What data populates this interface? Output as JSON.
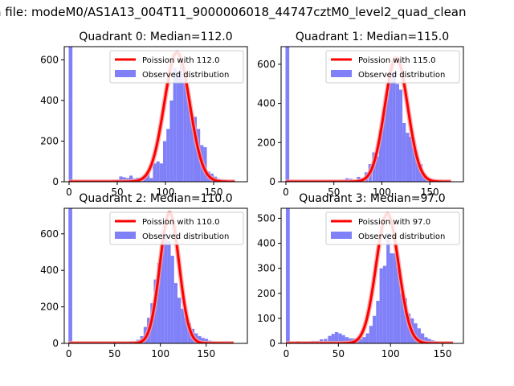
{
  "figure": {
    "suptitle": "n file: modeM0/AS1A13_004T11_9000006018_44747cztM0_level2_quad_clean"
  },
  "colors": {
    "hist": "#8080f8",
    "poisson": "#ff0000",
    "poisson_glow": "#f4a0a0"
  },
  "chart_data": [
    {
      "type": "bar",
      "title": "Quadrant 0: Median=112.0",
      "median": 112.0,
      "legend": {
        "placement": "upper-right",
        "entries": [
          "Poission with 112.0",
          "Observed distribution"
        ]
      },
      "xlim": [
        -5,
        185
      ],
      "ylim": [
        0,
        665
      ],
      "xticks": [
        0,
        50,
        100,
        150
      ],
      "xtick_labels": [
        "0",
        "50",
        "100",
        "150"
      ],
      "yticks": [
        0,
        200,
        400,
        600
      ],
      "ytick_labels": [
        "0",
        "200",
        "400",
        "600"
      ],
      "bin_width": 3.5,
      "bins": [
        [
          0,
          665
        ],
        [
          45,
          8
        ],
        [
          48.5,
          10
        ],
        [
          52,
          26
        ],
        [
          55.5,
          22
        ],
        [
          59,
          18
        ],
        [
          62.5,
          30
        ],
        [
          66,
          16
        ],
        [
          69.5,
          20
        ],
        [
          73,
          6
        ],
        [
          76.5,
          30
        ],
        [
          80,
          40
        ],
        [
          83.5,
          18
        ],
        [
          87,
          90
        ],
        [
          90.5,
          100
        ],
        [
          94,
          90
        ],
        [
          97.5,
          200
        ],
        [
          101,
          260
        ],
        [
          104.5,
          400
        ],
        [
          108,
          560
        ],
        [
          111.5,
          545
        ],
        [
          115,
          590
        ],
        [
          118.5,
          500
        ],
        [
          122,
          420
        ],
        [
          125.5,
          300
        ],
        [
          129,
          320
        ],
        [
          132.5,
          260
        ],
        [
          136,
          180
        ],
        [
          139.5,
          170
        ],
        [
          143,
          50
        ],
        [
          146.5,
          40
        ],
        [
          150,
          25
        ],
        [
          153.5,
          15
        ],
        [
          157,
          10
        ],
        [
          160.5,
          8
        ],
        [
          164,
          4
        ]
      ],
      "poisson_curve": {
        "lambda": 112.0,
        "scale": 637,
        "x_range": [
          0,
          172
        ],
        "sigma": 13.2
      }
    },
    {
      "type": "bar",
      "title": "Quadrant 1: Median=115.0",
      "median": 115.0,
      "legend": {
        "placement": "upper-right",
        "entries": [
          "Poission with 115.0",
          "Observed distribution"
        ]
      },
      "xlim": [
        -5,
        185
      ],
      "ylim": [
        0,
        690
      ],
      "xticks": [
        0,
        50,
        100,
        150
      ],
      "xtick_labels": [
        "0",
        "50",
        "100",
        "150"
      ],
      "yticks": [
        0,
        200,
        400,
        600
      ],
      "ytick_labels": [
        "0",
        "200",
        "400",
        "600"
      ],
      "bin_width": 3.5,
      "bins": [
        [
          0,
          690
        ],
        [
          52,
          5
        ],
        [
          58,
          8
        ],
        [
          62,
          18
        ],
        [
          66,
          15
        ],
        [
          70,
          8
        ],
        [
          74,
          25
        ],
        [
          78,
          14
        ],
        [
          82,
          48
        ],
        [
          86,
          90
        ],
        [
          90,
          150
        ],
        [
          93.5,
          130
        ],
        [
          97,
          270
        ],
        [
          100.5,
          360
        ],
        [
          104,
          450
        ],
        [
          107.5,
          600
        ],
        [
          111,
          560
        ],
        [
          114.5,
          500
        ],
        [
          118,
          470
        ],
        [
          121.5,
          300
        ],
        [
          125,
          250
        ],
        [
          128.5,
          230
        ],
        [
          132,
          170
        ],
        [
          135.5,
          120
        ],
        [
          139,
          90
        ],
        [
          142.5,
          30
        ],
        [
          146,
          20
        ],
        [
          149.5,
          10
        ],
        [
          153,
          8
        ],
        [
          156.5,
          5
        ]
      ],
      "poisson_curve": {
        "lambda": 115.0,
        "scale": 632,
        "x_range": [
          0,
          172
        ],
        "sigma": 12.0
      }
    },
    {
      "type": "bar",
      "title": "Quadrant 2: Median=110.0",
      "median": 110.0,
      "legend": {
        "placement": "upper-right",
        "entries": [
          "Poission with 110.0",
          "Observed distribution"
        ]
      },
      "xlim": [
        -5,
        195
      ],
      "ylim": [
        0,
        740
      ],
      "xticks": [
        0,
        50,
        100,
        150
      ],
      "xtick_labels": [
        "0",
        "50",
        "100",
        "150"
      ],
      "yticks": [
        0,
        200,
        400,
        600
      ],
      "ytick_labels": [
        "0",
        "200",
        "400",
        "600"
      ],
      "bin_width": 3.7,
      "bins": [
        [
          0,
          740
        ],
        [
          57,
          5
        ],
        [
          62,
          8
        ],
        [
          66,
          12
        ],
        [
          70,
          10
        ],
        [
          74,
          20
        ],
        [
          78,
          40
        ],
        [
          81.7,
          90
        ],
        [
          85.4,
          140
        ],
        [
          89.1,
          220
        ],
        [
          92.8,
          350
        ],
        [
          96.5,
          440
        ],
        [
          100.2,
          620
        ],
        [
          103.9,
          600
        ],
        [
          107.6,
          560
        ],
        [
          111.3,
          480
        ],
        [
          115,
          330
        ],
        [
          118.7,
          250
        ],
        [
          122.4,
          190
        ],
        [
          126.1,
          140
        ],
        [
          129.8,
          110
        ],
        [
          133.5,
          80
        ],
        [
          137.2,
          55
        ],
        [
          140.9,
          40
        ],
        [
          144.6,
          30
        ],
        [
          148.3,
          25
        ],
        [
          152,
          15
        ],
        [
          155.7,
          10
        ],
        [
          159.4,
          8
        ],
        [
          163.1,
          5
        ]
      ],
      "poisson_curve": {
        "lambda": 110.0,
        "scale": 715,
        "x_range": [
          0,
          180
        ],
        "sigma": 10.5
      }
    },
    {
      "type": "bar",
      "title": "Quadrant 3: Median=97.0",
      "median": 97.0,
      "legend": {
        "placement": "upper-right",
        "entries": [
          "Poission with 97.0",
          "Observed distribution"
        ]
      },
      "xlim": [
        -5,
        170
      ],
      "ylim": [
        0,
        540
      ],
      "xticks": [
        0,
        50,
        100,
        150
      ],
      "xtick_labels": [
        "0",
        "50",
        "100",
        "150"
      ],
      "yticks": [
        0,
        100,
        200,
        300,
        400,
        500
      ],
      "ytick_labels": [
        "0",
        "100",
        "200",
        "300",
        "400",
        "500"
      ],
      "bin_width": 3.3,
      "bins": [
        [
          0,
          540
        ],
        [
          10,
          8
        ],
        [
          16,
          6
        ],
        [
          20,
          6
        ],
        [
          24,
          10
        ],
        [
          28,
          10
        ],
        [
          32,
          16
        ],
        [
          36,
          18
        ],
        [
          40,
          30
        ],
        [
          43.3,
          38
        ],
        [
          46.6,
          45
        ],
        [
          49.9,
          40
        ],
        [
          53.2,
          33
        ],
        [
          56.5,
          25
        ],
        [
          59.8,
          20
        ],
        [
          63.1,
          20
        ],
        [
          66.4,
          15
        ],
        [
          69.7,
          18
        ],
        [
          73,
          25
        ],
        [
          76.3,
          40
        ],
        [
          79.6,
          70
        ],
        [
          82.9,
          110
        ],
        [
          86.2,
          170
        ],
        [
          89.5,
          300
        ],
        [
          92.8,
          310
        ],
        [
          96.1,
          440
        ],
        [
          99.4,
          360
        ],
        [
          102.7,
          360
        ],
        [
          106,
          300
        ],
        [
          109.3,
          200
        ],
        [
          112.6,
          180
        ],
        [
          115.9,
          120
        ],
        [
          119.2,
          100
        ],
        [
          122.5,
          80
        ],
        [
          125.8,
          60
        ],
        [
          129.1,
          40
        ],
        [
          132.4,
          25
        ],
        [
          135.7,
          18
        ],
        [
          139,
          12
        ],
        [
          142.3,
          8
        ],
        [
          145.6,
          5
        ],
        [
          148.9,
          3
        ]
      ],
      "poisson_curve": {
        "lambda": 97.0,
        "scale": 518,
        "x_range": [
          0,
          160
        ],
        "sigma": 10.8
      }
    }
  ]
}
